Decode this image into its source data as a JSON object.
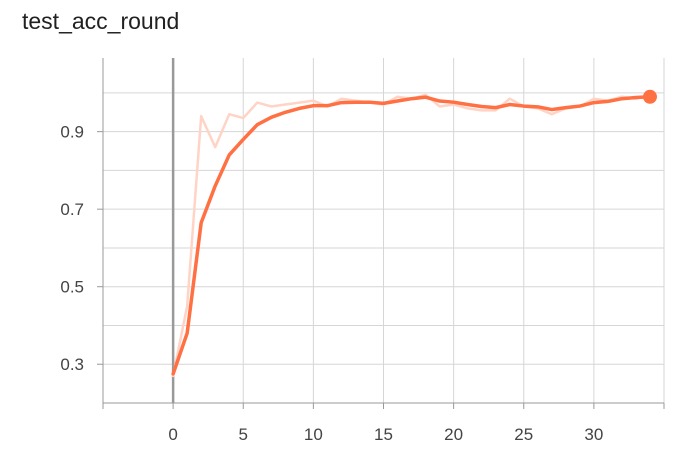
{
  "chart_data": {
    "type": "line",
    "title": "test_acc_round",
    "xlabel": "",
    "ylabel": "",
    "xlim": [
      -5,
      35
    ],
    "ylim": [
      0.2,
      1.09
    ],
    "x_ticks": [
      0,
      5,
      10,
      15,
      20,
      25,
      30
    ],
    "y_ticks": [
      0.3,
      0.5,
      0.7,
      0.9
    ],
    "x_tick_labels": [
      "0",
      "5",
      "10",
      "15",
      "20",
      "25",
      "30"
    ],
    "y_tick_labels": [
      "0.3",
      "0.5",
      "0.7",
      "0.9"
    ],
    "grid": true,
    "colors": {
      "smoothed": "#ff7043",
      "raw": "#ffd4c6",
      "grid": "#d6d6d6",
      "axis": "#999999",
      "zero_line": "#999999"
    },
    "series": [
      {
        "role": "raw",
        "x": [
          0,
          1,
          2,
          3,
          4,
          5,
          6,
          7,
          8,
          9,
          10,
          11,
          12,
          13,
          14,
          15,
          16,
          17,
          18,
          19,
          20,
          21,
          22,
          23,
          24,
          25,
          26,
          27,
          28,
          29,
          30,
          31,
          32,
          33,
          34
        ],
        "values": [
          0.27,
          0.45,
          0.94,
          0.86,
          0.945,
          0.935,
          0.975,
          0.965,
          0.97,
          0.975,
          0.98,
          0.965,
          0.985,
          0.98,
          0.975,
          0.97,
          0.99,
          0.985,
          0.995,
          0.965,
          0.97,
          0.96,
          0.955,
          0.955,
          0.985,
          0.965,
          0.96,
          0.945,
          0.96,
          0.965,
          0.985,
          0.98,
          0.99,
          0.985,
          0.995
        ]
      },
      {
        "role": "smoothed",
        "x": [
          0,
          1,
          2,
          3,
          4,
          5,
          6,
          7,
          8,
          9,
          10,
          11,
          12,
          13,
          14,
          15,
          16,
          17,
          18,
          19,
          20,
          21,
          22,
          23,
          24,
          25,
          26,
          27,
          28,
          29,
          30,
          31,
          32,
          33,
          34
        ],
        "values": [
          0.275,
          0.38,
          0.665,
          0.76,
          0.84,
          0.88,
          0.918,
          0.937,
          0.95,
          0.96,
          0.967,
          0.967,
          0.975,
          0.976,
          0.976,
          0.973,
          0.979,
          0.985,
          0.989,
          0.979,
          0.976,
          0.97,
          0.965,
          0.962,
          0.97,
          0.966,
          0.964,
          0.957,
          0.962,
          0.966,
          0.975,
          0.978,
          0.985,
          0.988,
          0.99
        ]
      }
    ]
  }
}
